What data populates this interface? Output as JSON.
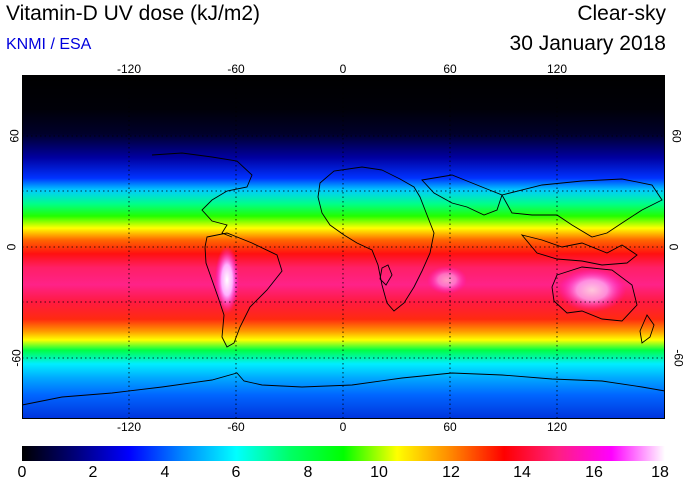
{
  "header": {
    "title": "Vitamin-D UV dose (kJ/m2)",
    "source": "KNMI / ESA",
    "sky_condition": "Clear-sky",
    "date": "30 January 2018"
  },
  "axes": {
    "longitude_labels": [
      "-120",
      "-60",
      "0",
      "60",
      "120"
    ],
    "latitude_labels": [
      "60",
      "0",
      "-60"
    ]
  },
  "colorbar": {
    "labels": [
      "0",
      "2",
      "4",
      "6",
      "8",
      "10",
      "12",
      "14",
      "16",
      "18"
    ],
    "colors": [
      "#000000",
      "#00007a",
      "#0000ff",
      "#0088ff",
      "#00ffff",
      "#00ff66",
      "#00ff00",
      "#ffff00",
      "#ff8800",
      "#ff0000",
      "#ff1f80",
      "#ff00ff",
      "#ffffff"
    ]
  },
  "map": {
    "background": "#000000"
  }
}
